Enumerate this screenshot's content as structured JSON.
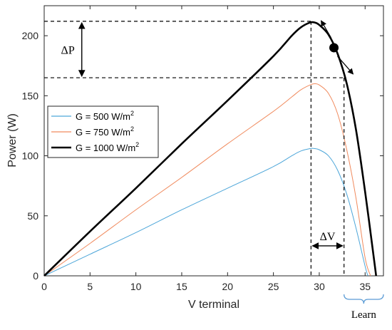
{
  "chart_data": {
    "type": "line",
    "title": "",
    "xlabel": "V terminal",
    "ylabel": "Power (W)",
    "xlim": [
      0,
      37
    ],
    "ylim": [
      0,
      225
    ],
    "x_ticks": [
      0,
      5,
      10,
      15,
      20,
      25,
      30,
      35
    ],
    "y_ticks": [
      0,
      50,
      100,
      150,
      200
    ],
    "grid": false,
    "legend_position": "upper-left",
    "series": [
      {
        "name": "G = 500 W/m",
        "superscript": "2",
        "color": "#4da6d9",
        "line_width": "thin",
        "x": [
          0,
          5,
          10,
          15,
          20,
          25,
          27,
          28,
          29,
          29.5,
          30,
          31,
          32,
          33,
          34,
          35,
          35.3
        ],
        "y": [
          0,
          18,
          36,
          55,
          73,
          91,
          100,
          104,
          106,
          106,
          105,
          100,
          88,
          68,
          40,
          8,
          0
        ]
      },
      {
        "name": "G = 750 W/m",
        "superscript": "2",
        "color": "#f08a5d",
        "line_width": "thin",
        "x": [
          0,
          5,
          10,
          15,
          20,
          25,
          27,
          28,
          29,
          29.5,
          30,
          31,
          32,
          33,
          34,
          35,
          35.6
        ],
        "y": [
          0,
          27,
          55,
          82,
          110,
          137,
          149,
          155,
          159,
          160,
          159,
          152,
          135,
          105,
          65,
          15,
          0
        ]
      },
      {
        "name": "G = 1000 W/m",
        "superscript": "2",
        "color": "#000000",
        "line_width": "thick",
        "x": [
          0,
          5,
          10,
          15,
          20,
          25,
          27,
          28,
          29,
          29.5,
          30,
          31,
          32,
          33,
          34,
          35,
          36,
          36.2
        ],
        "y": [
          0,
          37,
          73,
          110,
          146,
          183,
          200,
          207,
          211,
          211,
          209,
          201,
          185,
          160,
          122,
          70,
          12,
          0
        ]
      }
    ],
    "annotations": {
      "delta_p_label": "ΔP",
      "delta_v_label": "ΔV",
      "learn_label": "Learn",
      "mpp": {
        "v": 29.1,
        "p": 212
      },
      "second_point": {
        "v": 32.7,
        "p": 165
      },
      "operating_point": {
        "v": 31.6,
        "p": 190
      },
      "learn_range": [
        32.7,
        37
      ]
    }
  }
}
